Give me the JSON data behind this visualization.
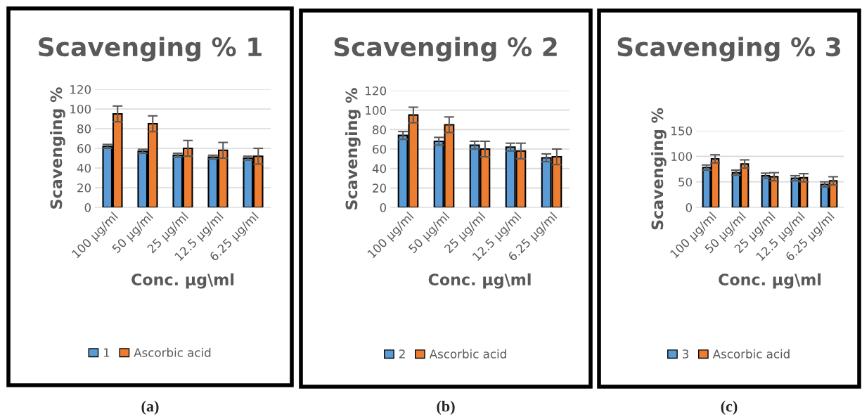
{
  "chart_data": [
    {
      "type": "bar",
      "title": "Scavenging % 1",
      "xlabel": "Conc. µg\\ml",
      "ylabel": "Scavenging %",
      "categories": [
        "100 µg/ml",
        "50 µg/ml",
        "25 µg/ml",
        "12.5 µg/ml",
        "6.25 µg/ml"
      ],
      "series": [
        {
          "name": "1",
          "color": "#5b9bd5",
          "values": [
            62,
            57,
            53,
            51,
            50
          ],
          "errors": [
            2,
            2,
            2,
            2,
            2
          ]
        },
        {
          "name": "Ascorbic acid",
          "color": "#ed7d31",
          "values": [
            95,
            85,
            60,
            58,
            52
          ],
          "errors": [
            8,
            8,
            8,
            8,
            8
          ]
        }
      ],
      "ylim": [
        0,
        120
      ],
      "yticks": [
        0,
        20,
        40,
        60,
        80,
        100,
        120
      ],
      "grid": "y",
      "legend": "bottom",
      "annotations": [
        "(a)"
      ]
    },
    {
      "type": "bar",
      "title": "Scavenging % 2",
      "xlabel": "Conc. µg\\ml",
      "ylabel": "Scavenging %",
      "categories": [
        "100 µg/ml",
        "50 µg/ml",
        "25 µg/ml",
        "12.5 µg/ml",
        "6.25 µg/ml"
      ],
      "series": [
        {
          "name": "2",
          "color": "#5b9bd5",
          "values": [
            74,
            68,
            64,
            62,
            51
          ],
          "errors": [
            4,
            4,
            4,
            4,
            4
          ]
        },
        {
          "name": "Ascorbic acid",
          "color": "#ed7d31",
          "values": [
            95,
            85,
            60,
            58,
            52
          ],
          "errors": [
            8,
            8,
            8,
            8,
            8
          ]
        }
      ],
      "ylim": [
        0,
        120
      ],
      "yticks": [
        0,
        20,
        40,
        60,
        80,
        100,
        120
      ],
      "grid": "y",
      "legend": "bottom",
      "annotations": [
        "(b)"
      ]
    },
    {
      "type": "bar",
      "title": "Scavenging % 3",
      "xlabel": "Conc. µg\\ml",
      "ylabel": "Scavenging %",
      "categories": [
        "100 µg/ml",
        "50 µg/ml",
        "25 µg/ml",
        "12.5 µg/ml",
        "6.25 µg/ml"
      ],
      "series": [
        {
          "name": "3",
          "color": "#5b9bd5",
          "values": [
            78,
            68,
            62,
            57,
            45
          ],
          "errors": [
            5,
            5,
            5,
            5,
            5
          ]
        },
        {
          "name": "Ascorbic acid",
          "color": "#ed7d31",
          "values": [
            95,
            85,
            60,
            58,
            52
          ],
          "errors": [
            8,
            8,
            8,
            8,
            8
          ]
        }
      ],
      "ylim": [
        0,
        150
      ],
      "yticks": [
        0,
        50,
        100,
        150
      ],
      "grid": "y",
      "legend": "bottom",
      "annotations": [
        "(c)"
      ]
    }
  ]
}
